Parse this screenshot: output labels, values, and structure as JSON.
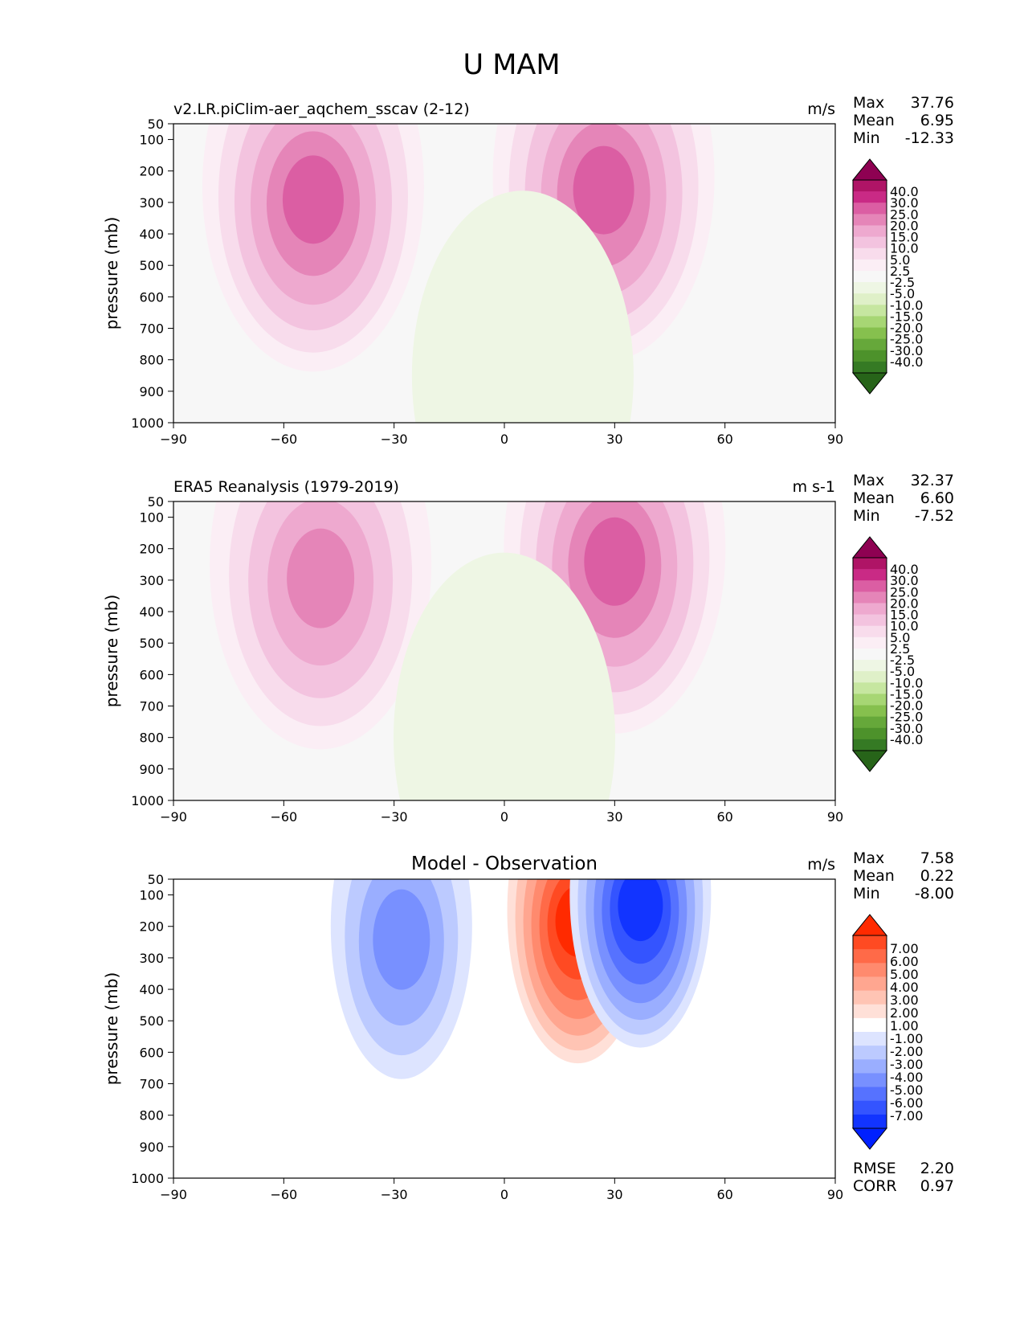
{
  "figure_title": "U MAM",
  "chart_data": [
    {
      "type": "contour",
      "title": "v2.LR.piClim-aer_aqchem_sscav (2-12)",
      "units": "m/s",
      "xlabel": "",
      "ylabel": "pressure (mb)",
      "xlim": [
        -90,
        90
      ],
      "ylim": [
        1000,
        50
      ],
      "xticks": [
        "−90",
        "−60",
        "−30",
        "0",
        "30",
        "60",
        "90"
      ],
      "yticks": [
        "50",
        "100",
        "200",
        "300",
        "400",
        "500",
        "600",
        "700",
        "800",
        "900",
        "1000"
      ],
      "stats": [
        {
          "label": "Max",
          "value": "37.76"
        },
        {
          "label": "Mean",
          "value": "6.95"
        },
        {
          "label": "Min",
          "value": "-12.33"
        }
      ],
      "colorbar_labels": [
        "40.0",
        "30.0",
        "25.0",
        "20.0",
        "15.0",
        "10.0",
        "5.0",
        "2.5",
        "-2.5",
        "-5.0",
        "-10.0",
        "-15.0",
        "-20.0",
        "-25.0",
        "-30.0",
        "-40.0"
      ],
      "colorbar_colors": [
        "#8e0152",
        "#af1466",
        "#c92a85",
        "#db5ea3",
        "#e585b8",
        "#eea9cf",
        "#f3c3df",
        "#f8dcec",
        "#fbeef5",
        "#f7f7f7",
        "#eef6e4",
        "#dff0c8",
        "#c6e6a0",
        "#a7d674",
        "#86c04e",
        "#66a83a",
        "#4d922b",
        "#357a24",
        "#276419"
      ],
      "jets": [
        {
          "lat": -52,
          "p": 250,
          "u": 34
        },
        {
          "lat": 27,
          "p": 220,
          "u": 37
        },
        {
          "lat": 5,
          "p": 850,
          "u": -5
        }
      ]
    },
    {
      "type": "contour",
      "title": "ERA5 Reanalysis (1979-2019)",
      "units": "m s-1",
      "xlabel": "",
      "ylabel": "pressure (mb)",
      "xlim": [
        -90,
        90
      ],
      "ylim": [
        1000,
        50
      ],
      "xticks": [
        "−90",
        "−60",
        "−30",
        "0",
        "30",
        "60",
        "90"
      ],
      "yticks": [
        "50",
        "100",
        "200",
        "300",
        "400",
        "500",
        "600",
        "700",
        "800",
        "900",
        "1000"
      ],
      "stats": [
        {
          "label": "Max",
          "value": "32.37"
        },
        {
          "label": "Mean",
          "value": "6.60"
        },
        {
          "label": "Min",
          "value": "-7.52"
        }
      ],
      "colorbar_labels": [
        "40.0",
        "30.0",
        "25.0",
        "20.0",
        "15.0",
        "10.0",
        "5.0",
        "2.5",
        "-2.5",
        "-5.0",
        "-10.0",
        "-15.0",
        "-20.0",
        "-25.0",
        "-30.0",
        "-40.0"
      ],
      "colorbar_colors": [
        "#8e0152",
        "#af1466",
        "#c92a85",
        "#db5ea3",
        "#e585b8",
        "#eea9cf",
        "#f3c3df",
        "#f8dcec",
        "#fbeef5",
        "#f7f7f7",
        "#eef6e4",
        "#dff0c8",
        "#c6e6a0",
        "#a7d674",
        "#86c04e",
        "#66a83a",
        "#4d922b",
        "#357a24",
        "#276419"
      ],
      "jets": [
        {
          "lat": -50,
          "p": 250,
          "u": 29
        },
        {
          "lat": 30,
          "p": 200,
          "u": 32
        },
        {
          "lat": 0,
          "p": 800,
          "u": -3
        }
      ]
    },
    {
      "type": "contour",
      "title": "Model - Observation",
      "units": "m/s",
      "xlabel": "",
      "ylabel": "pressure (mb)",
      "xlim": [
        -90,
        90
      ],
      "ylim": [
        1000,
        50
      ],
      "xticks": [
        "−90",
        "−60",
        "−30",
        "0",
        "30",
        "60",
        "90"
      ],
      "yticks": [
        "50",
        "100",
        "200",
        "300",
        "400",
        "500",
        "600",
        "700",
        "800",
        "900",
        "1000"
      ],
      "stats": [
        {
          "label": "Max",
          "value": "7.58"
        },
        {
          "label": "Mean",
          "value": "0.22"
        },
        {
          "label": "Min",
          "value": "-8.00"
        }
      ],
      "extra_stats": [
        {
          "label": "RMSE",
          "value": "2.20"
        },
        {
          "label": "CORR",
          "value": "0.97"
        }
      ],
      "colorbar_labels": [
        "7.00",
        "6.00",
        "5.00",
        "4.00",
        "3.00",
        "2.00",
        "1.00",
        "-1.00",
        "-2.00",
        "-3.00",
        "-4.00",
        "-5.00",
        "-6.00",
        "-7.00"
      ],
      "colorbar_colors": [
        "#ff2a00",
        "#ff4a22",
        "#ff6a48",
        "#ff8a6e",
        "#ffa690",
        "#ffc4b4",
        "#ffe0d8",
        "#ffffff",
        "#dde4ff",
        "#bccaff",
        "#9aaeff",
        "#7890ff",
        "#5672ff",
        "#3454ff",
        "#1234ff",
        "#0020ff"
      ],
      "jets": [
        {
          "lat": 20,
          "p": 150,
          "u": 7.6
        },
        {
          "lat": 37,
          "p": 100,
          "u": -8
        },
        {
          "lat": -28,
          "p": 200,
          "u": -4
        }
      ]
    }
  ]
}
